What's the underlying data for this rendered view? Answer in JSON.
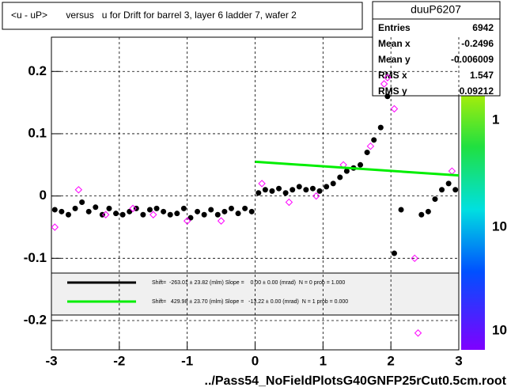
{
  "title": "<u - uP>       versus   u for Drift for barrel 3, layer 6 ladder 7, wafer 2",
  "stats": {
    "name": "duuP6207",
    "rows": [
      {
        "label": "Entries",
        "value": 6942
      },
      {
        "label": "Mean x",
        "value": -0.2496
      },
      {
        "label": "Mean y",
        "value": -0.006009
      },
      {
        "label": "RMS x",
        "value": 1.547
      },
      {
        "label": "RMS y",
        "value": 0.09212
      }
    ]
  },
  "palette_labels": [
    "1",
    "10",
    "10"
  ],
  "legend": [
    "Shift=  -263.01 ± 23.82 (mlm) Slope =    0.00 ± 0.00 (mrad)  N = 0 prob = 1.000",
    "Shift=   429.98 ± 23.70 (mlm) Slope =   -13.22 ± 0.00 (mrad)  N = 1 prob = 0.000"
  ],
  "chart_data": {
    "type": "scatter",
    "x_label": "../Pass54_NoFieldPlotsG40GNFP25rCut0.5cm.root",
    "xlim": [
      -3,
      3
    ],
    "xticks": [
      -3,
      -2,
      -1,
      0,
      1,
      2,
      3
    ],
    "ylim": [
      -0.247,
      0.255
    ],
    "yticks": [
      -0.2,
      -0.1,
      0,
      0.1,
      0.2
    ],
    "grid": true,
    "series": [
      {
        "color": "#000000",
        "x": [
          -2.95,
          -2.85,
          -2.75,
          -2.65,
          -2.55,
          -2.45,
          -2.35,
          -2.25,
          -2.15,
          -2.05,
          -1.95,
          -1.85,
          -1.75,
          -1.65,
          -1.55,
          -1.45,
          -1.35,
          -1.25,
          -1.15,
          -1.05,
          -0.95,
          -0.85,
          -0.75,
          -0.65,
          -0.55,
          -0.45,
          -0.35,
          -0.25,
          -0.15,
          -0.05,
          0.05,
          0.15,
          0.25,
          0.35,
          0.45,
          0.55,
          0.65,
          0.75,
          0.85,
          0.95,
          1.05,
          1.15,
          1.25,
          1.35,
          1.45,
          1.55,
          1.65,
          1.75,
          1.85,
          1.95,
          2.05,
          2.15,
          2.45,
          2.55,
          2.65,
          2.75,
          2.85,
          2.95
        ],
        "values": [
          -0.022,
          -0.025,
          -0.03,
          -0.02,
          -0.01,
          -0.025,
          -0.018,
          -0.03,
          -0.02,
          -0.028,
          -0.03,
          -0.025,
          -0.02,
          -0.03,
          -0.022,
          -0.02,
          -0.025,
          -0.03,
          -0.028,
          -0.02,
          -0.035,
          -0.025,
          -0.03,
          -0.022,
          -0.03,
          -0.025,
          -0.02,
          -0.028,
          -0.02,
          -0.025,
          0.005,
          0.01,
          0.008,
          0.012,
          0.005,
          0.01,
          0.015,
          0.01,
          0.012,
          0.008,
          0.015,
          0.02,
          0.03,
          0.04,
          0.045,
          0.05,
          0.07,
          0.09,
          0.11,
          0.16,
          -0.092,
          -0.022,
          -0.03,
          -0.025,
          -0.005,
          0.01,
          0.02,
          0.01
        ]
      },
      {
        "color": "#ff00ff",
        "x": [
          -2.95,
          -2.6,
          -2.2,
          -1.8,
          -1.5,
          -1.0,
          -0.5,
          0.1,
          0.5,
          0.9,
          1.3,
          1.7,
          1.9,
          1.95,
          2.05,
          2.35,
          2.4,
          2.9
        ],
        "values": [
          -0.05,
          0.01,
          -0.03,
          -0.02,
          -0.03,
          -0.04,
          -0.04,
          0.02,
          -0.01,
          0.0,
          0.05,
          0.08,
          0.18,
          0.19,
          0.14,
          -0.1,
          -0.22,
          0.04
        ]
      },
      {
        "color": "#00ee00",
        "x": [
          0,
          3
        ],
        "values": [
          0.055,
          0.033
        ]
      }
    ]
  }
}
